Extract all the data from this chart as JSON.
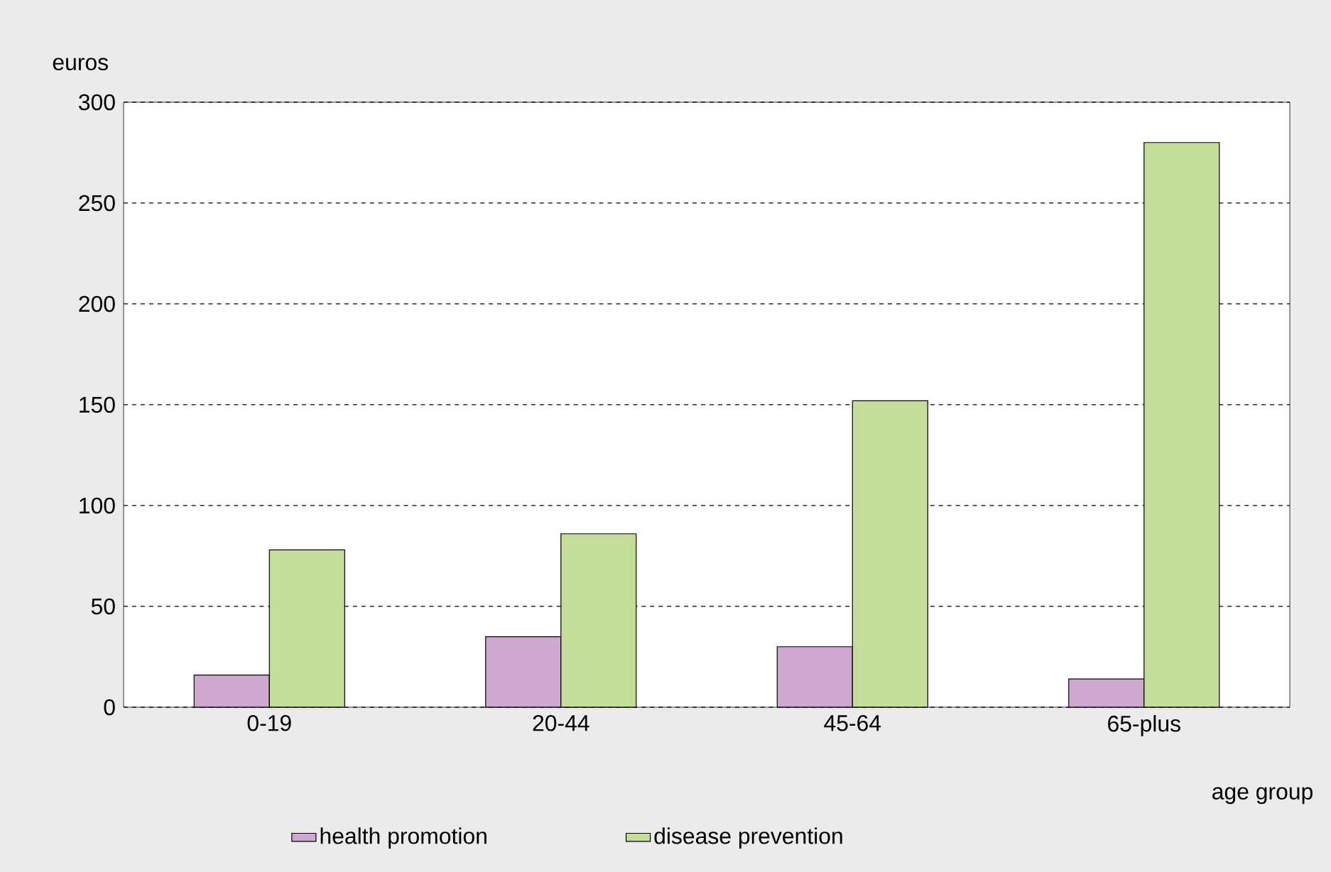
{
  "chart_data": {
    "type": "bar",
    "xlabel": "age group",
    "ylabel": "euros",
    "categories": [
      "0-19",
      "20-44",
      "45-64",
      "65-plus"
    ],
    "series": [
      {
        "name": "health promotion",
        "color": "#cfa8cf",
        "values": [
          16,
          35,
          30,
          14
        ]
      },
      {
        "name": "disease prevention",
        "color": "#c4dd9b",
        "values": [
          78,
          86,
          152,
          280
        ]
      }
    ],
    "ylim": [
      0,
      300
    ],
    "yticks": [
      0,
      50,
      100,
      150,
      200,
      250,
      300
    ],
    "grid": "y",
    "legend": "bottom left"
  }
}
